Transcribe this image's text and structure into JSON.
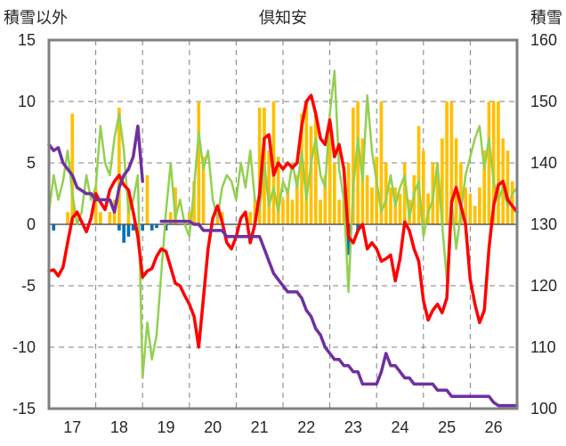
{
  "chart_data": {
    "type": "bar+line",
    "title": "倶知安",
    "ylabel_left": "積雪以外",
    "ylabel_right": "積雪",
    "ylim_left": [
      -15,
      15
    ],
    "yticks_left": [
      -15,
      -10,
      -5,
      0,
      5,
      10,
      15
    ],
    "ylim_right": [
      100,
      160
    ],
    "yticks_right": [
      100,
      110,
      120,
      130,
      140,
      150,
      160
    ],
    "xlim": [
      16.5,
      26.5
    ],
    "xticks": [
      17,
      18,
      19,
      20,
      21,
      22,
      23,
      24,
      25,
      26
    ],
    "xtick_labels": [
      "17",
      "18",
      "19",
      "20",
      "21",
      "22",
      "23",
      "24",
      "25",
      "26"
    ],
    "grid": "dashed",
    "colors": {
      "red": "#ff0000",
      "green": "#92d050",
      "purple": "#7030a0",
      "orange": "#ffc000",
      "blue": "#0070c0",
      "frame": "#808080"
    },
    "series": [
      {
        "color": "red",
        "kind": "line",
        "axis": "left",
        "x": [
          16.5,
          16.6,
          16.7,
          16.8,
          16.9,
          17.0,
          17.1,
          17.2,
          17.3,
          17.4,
          17.5,
          17.6,
          17.7,
          17.8,
          17.9,
          18.0,
          18.1,
          18.2,
          18.3,
          18.4,
          18.5,
          18.6,
          18.7,
          18.8,
          18.9,
          19.0,
          19.1,
          19.2,
          19.3,
          19.4,
          19.5,
          19.6,
          19.7,
          19.8,
          19.9,
          20.0,
          20.1,
          20.2,
          20.3,
          20.4,
          20.5,
          20.6,
          20.7,
          20.8,
          20.9,
          21.0,
          21.1,
          21.2,
          21.3,
          21.4,
          21.5,
          21.6,
          21.7,
          21.8,
          21.9,
          22.0,
          22.1,
          22.2,
          22.3,
          22.4,
          22.5,
          22.6,
          22.7,
          22.8,
          22.9,
          23.0,
          23.1,
          23.2,
          23.3,
          23.4,
          23.5,
          23.6,
          23.7,
          23.8,
          23.9,
          24.0,
          24.1,
          24.2,
          24.3,
          24.4,
          24.5,
          24.6,
          24.7,
          24.8,
          24.9,
          25.0,
          25.1,
          25.2,
          25.3,
          25.4,
          25.5,
          25.6,
          25.7,
          25.8,
          25.9,
          26.0,
          26.1,
          26.2,
          26.3,
          26.4,
          26.5
        ],
        "y": [
          -3.8,
          -3.7,
          -4.2,
          -3.5,
          -1.5,
          0.5,
          1.0,
          0.2,
          -0.6,
          0.5,
          2.5,
          1.8,
          1.2,
          2.8,
          3.5,
          4.0,
          3.2,
          2.8,
          1.0,
          -1.0,
          -4.3,
          -3.8,
          -3.6,
          -2.6,
          -2.0,
          -2.2,
          -3.5,
          -4.8,
          -5.0,
          -5.8,
          -6.5,
          -7.5,
          -10.0,
          -6.0,
          -2.0,
          0.5,
          1.5,
          0.2,
          -1.5,
          -2.0,
          -1.0,
          0.5,
          1.0,
          -1.5,
          0.0,
          2.5,
          7.0,
          7.3,
          4.0,
          5.0,
          4.5,
          5.0,
          4.6,
          5.0,
          8.0,
          10.0,
          10.5,
          9.0,
          7.0,
          6.5,
          8.5,
          5.5,
          6.5,
          4.5,
          -1.0,
          -1.5,
          -0.5,
          0.0,
          -2.0,
          -1.5,
          -2.0,
          -3.0,
          -2.8,
          -2.5,
          -4.6,
          -2.8,
          0.2,
          -0.5,
          -2.0,
          -3.0,
          -6.2,
          -7.8,
          -7.0,
          -6.5,
          -7.2,
          -6.0,
          1.8,
          3.0,
          1.5,
          0.0,
          -4.5,
          -6.5,
          -8.0,
          -7.0,
          -2.0,
          1.5,
          3.2,
          3.5,
          2.0,
          1.5,
          1.0
        ],
        "style": "thick"
      },
      {
        "color": "green",
        "kind": "line",
        "axis": "left",
        "x": [
          16.5,
          16.6,
          16.7,
          16.8,
          16.9,
          17.0,
          17.1,
          17.2,
          17.3,
          17.4,
          17.5,
          17.6,
          17.7,
          17.8,
          17.9,
          18.0,
          18.1,
          18.2,
          18.3,
          18.4,
          18.5,
          18.6,
          18.7,
          18.8,
          18.9,
          19.0,
          19.1,
          19.2,
          19.3,
          19.4,
          19.5,
          19.6,
          19.7,
          19.8,
          19.9,
          20.0,
          20.1,
          20.2,
          20.3,
          20.4,
          20.5,
          20.6,
          20.7,
          20.8,
          20.9,
          21.0,
          21.1,
          21.2,
          21.3,
          21.4,
          21.5,
          21.6,
          21.7,
          21.8,
          21.9,
          22.0,
          22.1,
          22.2,
          22.3,
          22.4,
          22.5,
          22.6,
          22.7,
          22.8,
          22.9,
          23.0,
          23.1,
          23.2,
          23.3,
          23.4,
          23.5,
          23.6,
          23.7,
          23.8,
          23.9,
          24.0,
          24.1,
          24.2,
          24.3,
          24.4,
          24.5,
          24.6,
          24.7,
          24.8,
          24.9,
          25.0,
          25.1,
          25.2,
          25.3,
          25.4,
          25.5,
          25.6,
          25.7,
          25.8,
          25.9,
          26.0,
          26.1,
          26.2,
          26.3,
          26.4,
          26.5
        ],
        "y": [
          1.0,
          4.0,
          2.0,
          3.5,
          6.0,
          2.5,
          0.0,
          1.0,
          4.0,
          2.0,
          3.0,
          8.0,
          5.0,
          4.0,
          7.0,
          9.0,
          6.0,
          1.0,
          2.0,
          4.0,
          -12.5,
          -8.0,
          -11.0,
          -9.0,
          -4.0,
          1.0,
          5.0,
          0.5,
          2.0,
          0.0,
          -1.0,
          3.0,
          7.5,
          4.5,
          6.0,
          2.0,
          0.5,
          3.0,
          4.0,
          3.5,
          2.0,
          5.0,
          3.0,
          6.0,
          2.0,
          1.0,
          5.0,
          1.5,
          3.0,
          1.0,
          3.5,
          2.5,
          5.0,
          3.0,
          6.0,
          2.0,
          5.0,
          7.0,
          4.0,
          3.0,
          9.0,
          12.5,
          4.5,
          2.0,
          -5.5,
          3.0,
          7.0,
          3.5,
          10.5,
          6.0,
          3.5,
          1.0,
          2.0,
          4.0,
          1.5,
          3.0,
          4.0,
          0.5,
          2.5,
          3.5,
          -1.0,
          1.0,
          2.0,
          5.0,
          0.0,
          -4.5,
          2.0,
          -2.0,
          1.0,
          4.0,
          5.5,
          7.0,
          8.0,
          4.5,
          7.0,
          3.5,
          2.0,
          3.0,
          1.5,
          2.5,
          3.0
        ],
        "style": "medium"
      },
      {
        "color": "purple",
        "kind": "line",
        "axis": "right",
        "x": [
          16.5,
          16.6,
          16.7,
          16.8,
          16.9,
          17.0,
          17.1,
          17.2,
          17.3,
          17.4,
          17.5,
          17.6,
          17.7,
          17.8,
          17.9,
          18.0,
          18.1,
          18.2,
          18.3,
          18.4,
          18.5,
          null,
          18.9,
          19.0,
          19.1,
          19.2,
          19.3,
          19.4,
          19.5,
          19.6,
          19.7,
          19.8,
          19.9,
          20.0,
          20.1,
          20.2,
          20.3,
          20.4,
          20.5,
          20.6,
          20.7,
          20.8,
          20.9,
          21.0,
          21.1,
          21.2,
          21.3,
          21.4,
          21.5,
          21.6,
          21.7,
          21.8,
          21.9,
          22.0,
          22.1,
          22.2,
          22.3,
          22.4,
          22.5,
          22.6,
          22.7,
          22.8,
          22.9,
          23.0,
          23.1,
          23.2,
          23.3,
          23.4,
          23.5,
          23.6,
          23.7,
          23.8,
          23.9,
          24.0,
          24.1,
          24.2,
          24.3,
          24.4,
          24.5,
          24.6,
          24.7,
          24.8,
          24.9,
          25.0,
          25.1,
          25.2,
          25.3,
          25.4,
          25.5,
          25.6,
          25.7,
          25.8,
          25.9,
          26.0,
          26.1,
          26.2,
          26.3,
          26.4,
          26.5
        ],
        "y": [
          143.0,
          142.0,
          142.5,
          140.0,
          139.0,
          138.0,
          136.0,
          135.5,
          135.0,
          135.0,
          134.0,
          134.0,
          134.0,
          134.0,
          132.0,
          136.0,
          138.0,
          139.0,
          141.0,
          146.0,
          137.0,
          null,
          130.5,
          130.5,
          130.5,
          130.5,
          130.5,
          130.5,
          130.5,
          130.0,
          130.0,
          129.0,
          129.0,
          129.0,
          129.0,
          129.0,
          128.0,
          128.0,
          128.0,
          128.0,
          128.0,
          128.0,
          128.0,
          128.0,
          126.0,
          124.0,
          122.0,
          121.0,
          120.0,
          119.0,
          119.0,
          119.0,
          118.0,
          116.0,
          115.0,
          113.0,
          112.0,
          110.0,
          109.0,
          108.0,
          108.0,
          107.0,
          107.0,
          106.0,
          106.0,
          104.0,
          104.0,
          104.0,
          104.0,
          106.0,
          109.0,
          107.0,
          107.0,
          106.0,
          105.0,
          105.0,
          104.0,
          104.0,
          104.0,
          104.0,
          104.0,
          103.0,
          103.0,
          103.0,
          102.0,
          102.0,
          102.0,
          102.0,
          102.0,
          102.0,
          102.0,
          102.0,
          102.0,
          101.0,
          100.5,
          100.5,
          100.5,
          100.5,
          100.5
        ],
        "style": "thick"
      },
      {
        "color": "orange",
        "kind": "bar",
        "axis": "left",
        "x": [
          16.9,
          17.0,
          17.5,
          17.6,
          17.8,
          17.9,
          18.0,
          18.2,
          18.6,
          19.1,
          19.2,
          19.5,
          19.6,
          19.7,
          19.8,
          20.1,
          20.2,
          20.8,
          20.9,
          21.0,
          21.1,
          21.2,
          21.3,
          21.4,
          21.5,
          21.6,
          21.7,
          21.8,
          21.9,
          22.0,
          22.1,
          22.2,
          22.3,
          22.4,
          22.5,
          22.6,
          22.7,
          22.8,
          22.9,
          23.0,
          23.1,
          23.2,
          23.3,
          23.4,
          23.5,
          23.6,
          23.7,
          23.8,
          23.9,
          24.0,
          24.1,
          24.2,
          24.3,
          24.4,
          24.5,
          24.6,
          24.7,
          24.8,
          24.9,
          25.0,
          25.1,
          25.2,
          25.3,
          25.4,
          25.5,
          25.6,
          25.7,
          25.8,
          25.9,
          26.0,
          26.1,
          26.2,
          26.3,
          26.4
        ],
        "y": [
          1.0,
          9.0,
          3.0,
          1.0,
          1.0,
          2.0,
          9.5,
          2.0,
          4.0,
          1.0,
          3.0,
          1.0,
          3.5,
          10.0,
          5.5,
          0.5,
          1.0,
          1.0,
          2.0,
          9.5,
          9.5,
          6.0,
          10.0,
          5.5,
          2.0,
          3.0,
          2.0,
          4.0,
          9.0,
          10.0,
          8.0,
          9.0,
          2.0,
          4.0,
          8.0,
          5.0,
          2.0,
          2.0,
          5.0,
          9.5,
          10.0,
          7.0,
          4.0,
          3.0,
          5.5,
          10.0,
          5.0,
          3.0,
          3.0,
          2.5,
          5.0,
          2.0,
          4.0,
          8.0,
          6.0,
          2.5,
          5.0,
          5.0,
          7.0,
          10.0,
          10.0,
          7.0,
          5.0,
          3.0,
          2.5,
          1.5,
          3.0,
          6.0,
          10.0,
          10.0,
          10.0,
          7.0,
          6.0,
          3.5
        ],
        "style": "bars"
      },
      {
        "color": "blue",
        "kind": "bar",
        "axis": "left",
        "x": [
          16.6,
          18.0,
          18.1,
          18.2,
          18.3,
          18.5,
          18.7,
          18.8,
          19.0,
          22.9,
          23.1
        ],
        "y": [
          -0.5,
          -0.5,
          -1.5,
          -1.0,
          -0.5,
          -0.5,
          -0.5,
          -0.3,
          -0.5,
          -2.5,
          -0.5
        ],
        "style": "bars"
      }
    ]
  }
}
